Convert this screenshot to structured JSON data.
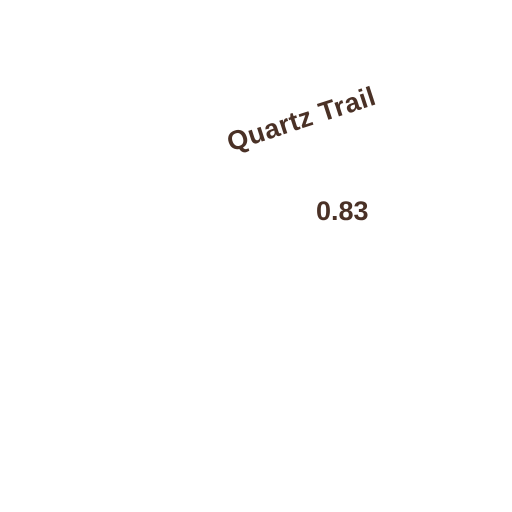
{
  "map": {
    "trail_name": "Quartz Trail",
    "distance": "0.83",
    "label_color": "#4a3126",
    "background_color": "#ffffff"
  }
}
